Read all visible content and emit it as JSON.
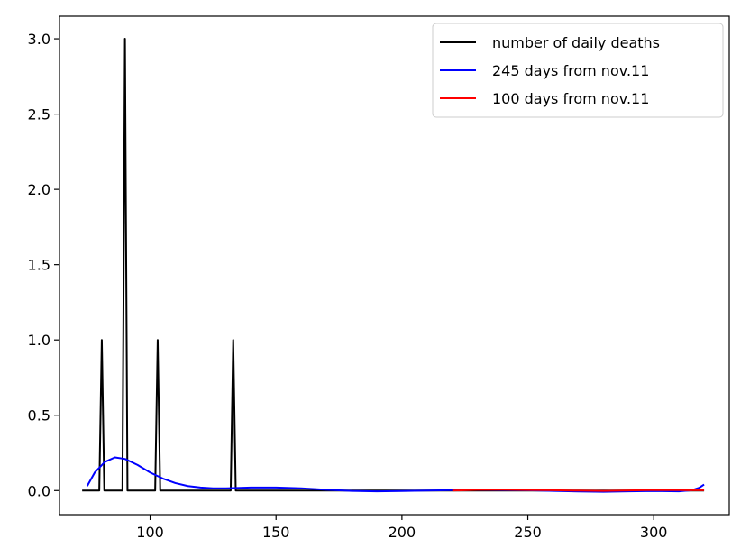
{
  "chart_data": {
    "type": "line",
    "title": "",
    "xlabel": "",
    "ylabel": "",
    "xlim": [
      64,
      330
    ],
    "ylim": [
      -0.16,
      3.15
    ],
    "x_ticks": [
      100,
      150,
      200,
      250,
      300
    ],
    "y_ticks": [
      0.0,
      0.5,
      1.0,
      1.5,
      2.0,
      2.5,
      3.0
    ],
    "x_tick_labels": [
      "100",
      "150",
      "200",
      "250",
      "300"
    ],
    "y_tick_labels": [
      "0.0",
      "0.5",
      "1.0",
      "1.5",
      "2.0",
      "2.5",
      "3.0"
    ],
    "grid": false,
    "legend_position": "top-right",
    "series": [
      {
        "name": "number of daily deaths",
        "color": "#000000",
        "x": [
          73,
          79.8,
          80.3,
          80.8,
          81.3,
          81.8,
          89,
          89.5,
          90,
          90.5,
          91,
          102,
          102.5,
          103,
          103.5,
          104,
          132,
          132.5,
          133,
          133.5,
          134,
          320
        ],
        "y": [
          0,
          0,
          0.5,
          1,
          0.5,
          0,
          0,
          1.5,
          3,
          1.5,
          0,
          0,
          0.5,
          1,
          0.5,
          0,
          0,
          0.5,
          1,
          0.5,
          0,
          0
        ]
      },
      {
        "name": "245 days from nov.11",
        "color": "#0000ff",
        "x": [
          75,
          78,
          82,
          86,
          90,
          95,
          100,
          105,
          110,
          115,
          120,
          125,
          130,
          140,
          150,
          160,
          170,
          180,
          190,
          200,
          210,
          220,
          230,
          240,
          250,
          260,
          270,
          280,
          290,
          300,
          310,
          315,
          318,
          320
        ],
        "y": [
          0.03,
          0.12,
          0.19,
          0.22,
          0.21,
          0.17,
          0.12,
          0.08,
          0.05,
          0.03,
          0.02,
          0.015,
          0.015,
          0.02,
          0.02,
          0.015,
          0.005,
          -0.002,
          -0.005,
          -0.003,
          0,
          0.003,
          0.005,
          0.004,
          0.002,
          -0.002,
          -0.006,
          -0.008,
          -0.005,
          -0.003,
          -0.005,
          0.002,
          0.018,
          0.04
        ]
      },
      {
        "name": "100 days from nov.11",
        "color": "#ff0000",
        "x": [
          220,
          230,
          240,
          250,
          260,
          270,
          280,
          290,
          300,
          310,
          320
        ],
        "y": [
          0.0,
          0.005,
          0.006,
          0.004,
          0.002,
          0.0,
          -0.002,
          0.001,
          0.004,
          0.003,
          0.002
        ]
      }
    ]
  }
}
